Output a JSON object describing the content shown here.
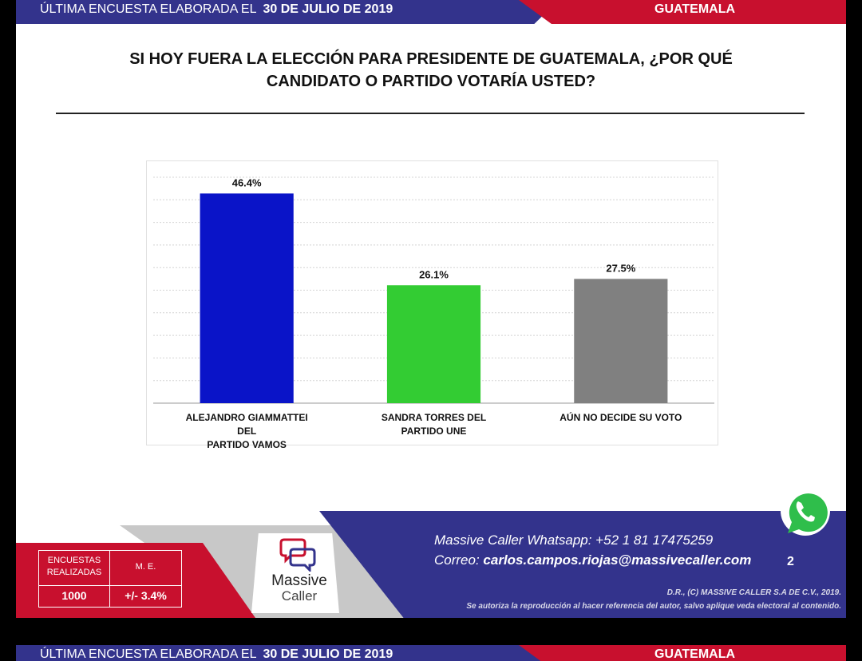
{
  "header": {
    "left_text": "ÚLTIMA ENCUESTA ELABORADA EL",
    "date": "30 DE JULIO DE 2019",
    "right_text": "GUATEMALA"
  },
  "question": {
    "line1": "SI HOY FUERA LA ELECCIÓN PARA PRESIDENTE DE GUATEMALA, ¿POR QUÉ",
    "line2": "CANDIDATO O PARTIDO VOTARÍA USTED?"
  },
  "chart_data": {
    "type": "bar",
    "title": "SI HOY FUERA LA ELECCIÓN PARA PRESIDENTE DE GUATEMALA, ¿POR QUÉ CANDIDATO O PARTIDO VOTARÍA USTED?",
    "categories": [
      [
        "ALEJANDRO GIAMMATTEI DEL",
        "PARTIDO VAMOS"
      ],
      [
        "SANDRA TORRES DEL PARTIDO UNE"
      ],
      [
        "AÚN NO DECIDE SU VOTO"
      ]
    ],
    "values": [
      46.4,
      26.1,
      27.5
    ],
    "labels": [
      "46.4%",
      "26.1%",
      "27.5%"
    ],
    "colors": [
      "#0a14c8",
      "#33cc33",
      "#808080"
    ],
    "ylim": [
      0,
      50
    ],
    "grid": true,
    "xlabel": "",
    "ylabel": ""
  },
  "stats": {
    "surveys_label_1": "ENCUESTAS",
    "surveys_label_2": "REALIZADAS",
    "surveys_value": "1000",
    "me_label": "M. E.",
    "me_value": "+/- 3.4%"
  },
  "logo": {
    "line1": "Massive",
    "line2": "Caller"
  },
  "contact": {
    "whatsapp": "Massive Caller Whatsapp: +52 1 81 17475259",
    "email_label": "Correo:",
    "email": "carlos.campos.riojas@massivecaller.com"
  },
  "page_number": "2",
  "legal": {
    "line1": "D.R., (C) MASSIVE CALLER S.A DE C.V., 2019.",
    "line2": "Se autoriza la reproducción al hacer referencia del autor, salvo aplique veda electoral al contenido."
  },
  "icons": {
    "whatsapp": "whatsapp-icon",
    "logo": "massive-caller-logo-icon"
  },
  "colors": {
    "blue": "#33338c",
    "red": "#c8102e",
    "gray": "#c8c8c8"
  }
}
